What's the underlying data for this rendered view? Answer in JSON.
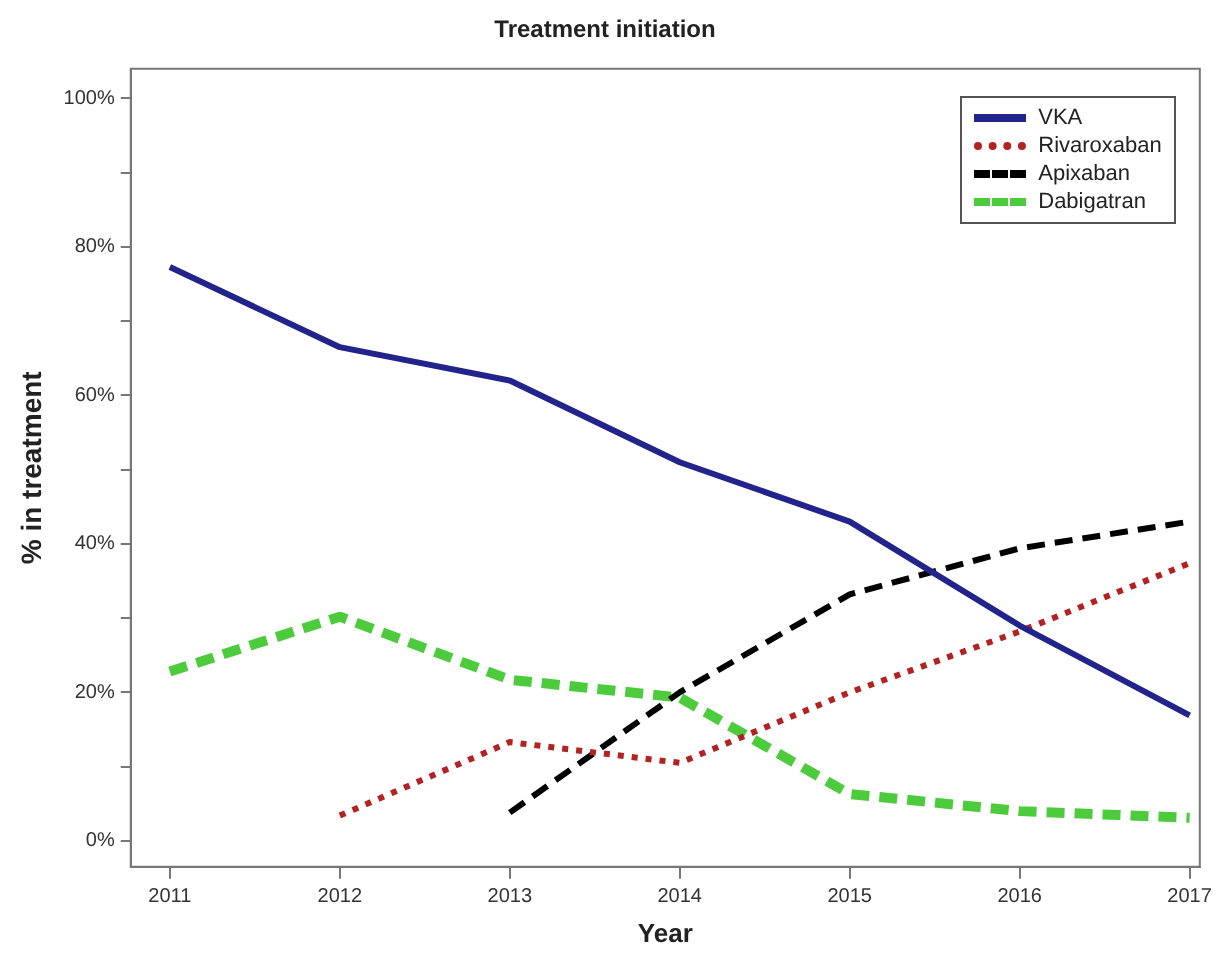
{
  "chart_data": {
    "type": "line",
    "title": "Treatment initiation",
    "xlabel": "Year",
    "ylabel": "% in treatment",
    "x": [
      2011,
      2012,
      2013,
      2014,
      2015,
      2016,
      2017
    ],
    "series": [
      {
        "name": "VKA",
        "color": "#23238c",
        "line_style": "solid",
        "values": [
          77.3,
          66.5,
          62,
          51,
          43,
          29,
          16.9
        ]
      },
      {
        "name": "Rivaroxaban",
        "color": "#b22222",
        "line_style": "dotted",
        "values": [
          null,
          3.4,
          13.3,
          10.5,
          20,
          28.2,
          37.4
        ]
      },
      {
        "name": "Apixaban",
        "color": "#000000",
        "line_style": "dashed",
        "values": [
          null,
          null,
          3.8,
          20,
          33.2,
          39.4,
          43
        ]
      },
      {
        "name": "Dabigatran",
        "color": "#4ccc3c",
        "line_style": "dashed",
        "values": [
          22.8,
          30.2,
          21.7,
          19.3,
          6.3,
          4,
          3.1
        ]
      }
    ],
    "xlim": [
      2010.77,
      2017.06
    ],
    "xticks": [
      2011,
      2012,
      2013,
      2014,
      2015,
      2016,
      2017
    ],
    "ylim": [
      -3.5,
      104
    ],
    "yticks": [
      {
        "value": 0,
        "label": "0%"
      },
      {
        "value": 10,
        "label": null
      },
      {
        "value": 20,
        "label": "20%"
      },
      {
        "value": 30,
        "label": null
      },
      {
        "value": 40,
        "label": "40%"
      },
      {
        "value": 50,
        "label": null
      },
      {
        "value": 60,
        "label": "60%"
      },
      {
        "value": 70,
        "label": null
      },
      {
        "value": 80,
        "label": "80%"
      },
      {
        "value": 90,
        "label": null
      },
      {
        "value": 100,
        "label": "100%"
      }
    ],
    "grid": false,
    "legend": "top right",
    "marker": "none"
  }
}
